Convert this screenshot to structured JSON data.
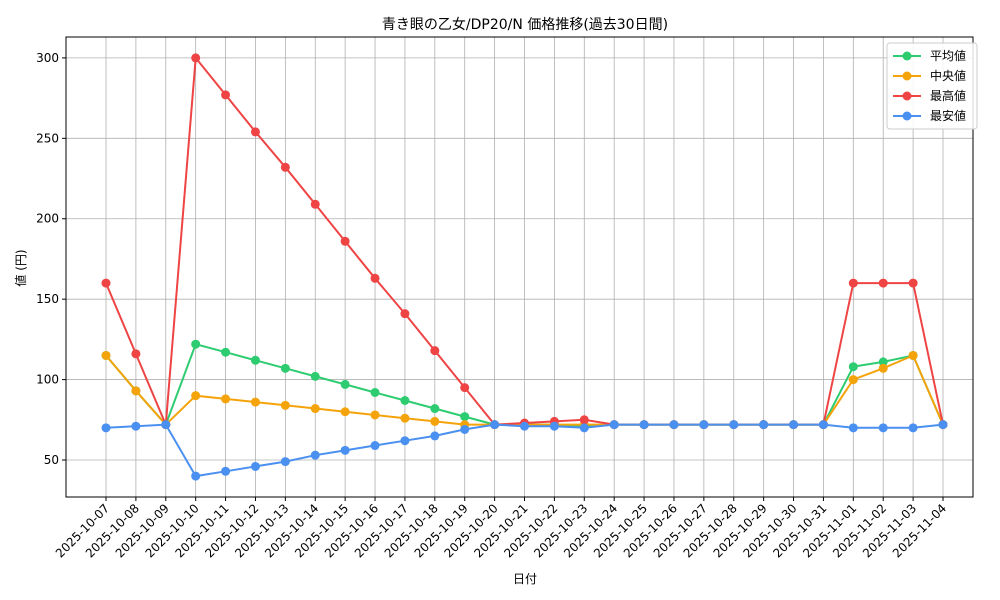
{
  "chart_data": {
    "type": "line",
    "title": "青き眼の乙女/DP20/N 価格推移(過去30日間)",
    "xlabel": "日付",
    "ylabel": "値 (円)",
    "ylim": [
      27,
      313
    ],
    "yticks": [
      50,
      100,
      150,
      200,
      250,
      300
    ],
    "grid": true,
    "legend_position": "top-right",
    "x": [
      "2025-10-07",
      "2025-10-08",
      "2025-10-09",
      "2025-10-10",
      "2025-10-11",
      "2025-10-12",
      "2025-10-13",
      "2025-10-14",
      "2025-10-15",
      "2025-10-16",
      "2025-10-17",
      "2025-10-18",
      "2025-10-19",
      "2025-10-20",
      "2025-10-21",
      "2025-10-22",
      "2025-10-23",
      "2025-10-24",
      "2025-10-25",
      "2025-10-26",
      "2025-10-27",
      "2025-10-28",
      "2025-10-29",
      "2025-10-30",
      "2025-10-31",
      "2025-11-01",
      "2025-11-02",
      "2025-11-03",
      "2025-11-04"
    ],
    "series": [
      {
        "name": "平均値",
        "color": "#2ecc71",
        "values": [
          115,
          93,
          72,
          122,
          117,
          112,
          107,
          102,
          97,
          92,
          87,
          82,
          77,
          72,
          72,
          72,
          71,
          72,
          72,
          72,
          72,
          72,
          72,
          72,
          72,
          108,
          111,
          115,
          72
        ]
      },
      {
        "name": "中央値",
        "color": "#f5a30a",
        "values": [
          115,
          93,
          72,
          90,
          88,
          86,
          84,
          82,
          80,
          78,
          76,
          74,
          72,
          72,
          72,
          72,
          72,
          72,
          72,
          72,
          72,
          72,
          72,
          72,
          72,
          100,
          107,
          115,
          72
        ]
      },
      {
        "name": "最高値",
        "color": "#ef4444",
        "values": [
          160,
          116,
          72,
          300,
          277,
          254,
          232,
          209,
          186,
          163,
          141,
          118,
          95,
          72,
          73,
          74,
          75,
          72,
          72,
          72,
          72,
          72,
          72,
          72,
          72,
          160,
          160,
          160,
          72
        ]
      },
      {
        "name": "最安値",
        "color": "#4a90f0",
        "values": [
          70,
          71,
          72,
          40,
          43,
          46,
          49,
          53,
          56,
          59,
          62,
          65,
          69,
          72,
          71,
          71,
          70,
          72,
          72,
          72,
          72,
          72,
          72,
          72,
          72,
          70,
          70,
          70,
          72
        ]
      }
    ]
  }
}
